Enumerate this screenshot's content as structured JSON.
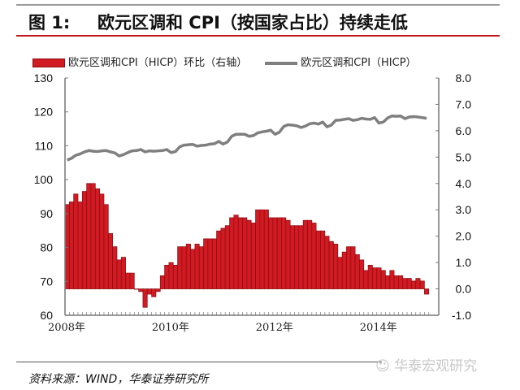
{
  "title": {
    "figure_no": "图 1:",
    "text": "欧元区调和 CPI（按国家占比）持续走低"
  },
  "source": "资料来源：WIND，华泰证券研究所",
  "watermark": "华泰宏观研究",
  "colors": {
    "bar": "#d11a22",
    "bar_edge": "#8a0d12",
    "line": "#7f7f7f",
    "accent": "#c0161e"
  },
  "chart_data": {
    "type": "bar+line",
    "x_start": "2008-01",
    "x_end": "2014-12",
    "frequency": "monthly",
    "x_tick_labels": [
      "2008年",
      "2010年",
      "2012年",
      "2014年"
    ],
    "y_left": {
      "range": [
        60,
        130
      ],
      "ticks": [
        "130",
        "120",
        "110",
        "100",
        "90",
        "80",
        "70",
        "60"
      ]
    },
    "y_right": {
      "range": [
        -1.0,
        8.0
      ],
      "ticks": [
        "8.0",
        "7.0",
        "6.0",
        "5.0",
        "4.0",
        "3.0",
        "2.0",
        "1.0",
        "0.0",
        "-1.0"
      ]
    },
    "grid": false,
    "legend": "top",
    "series": [
      {
        "name": "欧元区调和CPI（HICP）环比（右轴）",
        "type": "bar",
        "axis": "right",
        "values": [
          3.2,
          3.3,
          3.6,
          3.3,
          3.7,
          4.0,
          4.0,
          3.8,
          3.6,
          3.2,
          2.1,
          1.6,
          1.1,
          1.2,
          0.6,
          0.6,
          0.0,
          -0.1,
          -0.7,
          -0.2,
          -0.3,
          -0.1,
          0.5,
          0.9,
          1.0,
          0.9,
          1.6,
          1.6,
          1.7,
          1.5,
          1.7,
          1.6,
          1.9,
          1.9,
          1.9,
          2.2,
          2.3,
          2.4,
          2.7,
          2.8,
          2.7,
          2.7,
          2.6,
          2.5,
          3.0,
          3.0,
          3.0,
          2.7,
          2.7,
          2.7,
          2.7,
          2.6,
          2.4,
          2.4,
          2.4,
          2.6,
          2.6,
          2.5,
          2.2,
          2.2,
          2.0,
          1.8,
          1.7,
          1.2,
          1.4,
          1.6,
          1.6,
          1.3,
          1.1,
          0.7,
          0.9,
          0.8,
          0.8,
          0.7,
          0.5,
          0.7,
          0.5,
          0.5,
          0.4,
          0.4,
          0.3,
          0.4,
          0.3,
          -0.2
        ]
      },
      {
        "name": "欧元区调和CPI（HICP）",
        "type": "line",
        "axis": "left",
        "values": [
          105.8,
          106.3,
          107.2,
          107.6,
          108.2,
          108.6,
          108.4,
          108.3,
          108.5,
          108.6,
          108.2,
          107.9,
          107.0,
          107.4,
          108.0,
          108.5,
          108.6,
          108.9,
          108.2,
          108.5,
          108.4,
          108.5,
          108.6,
          108.9,
          108.0,
          108.3,
          109.7,
          110.2,
          110.3,
          110.4,
          109.9,
          110.1,
          110.2,
          110.5,
          110.6,
          111.3,
          110.5,
          111.1,
          112.8,
          113.4,
          113.4,
          113.4,
          112.8,
          113.0,
          113.8,
          114.1,
          114.3,
          114.6,
          113.4,
          114.0,
          115.7,
          116.2,
          116.1,
          115.9,
          115.4,
          115.8,
          116.5,
          116.7,
          116.4,
          117.0,
          115.6,
          116.1,
          117.5,
          117.6,
          117.8,
          118.0,
          117.5,
          117.7,
          118.1,
          117.9,
          117.8,
          118.3,
          116.7,
          117.0,
          118.2,
          118.8,
          118.7,
          118.8,
          118.0,
          118.5,
          118.6,
          118.5,
          118.3,
          118.1
        ]
      }
    ]
  }
}
